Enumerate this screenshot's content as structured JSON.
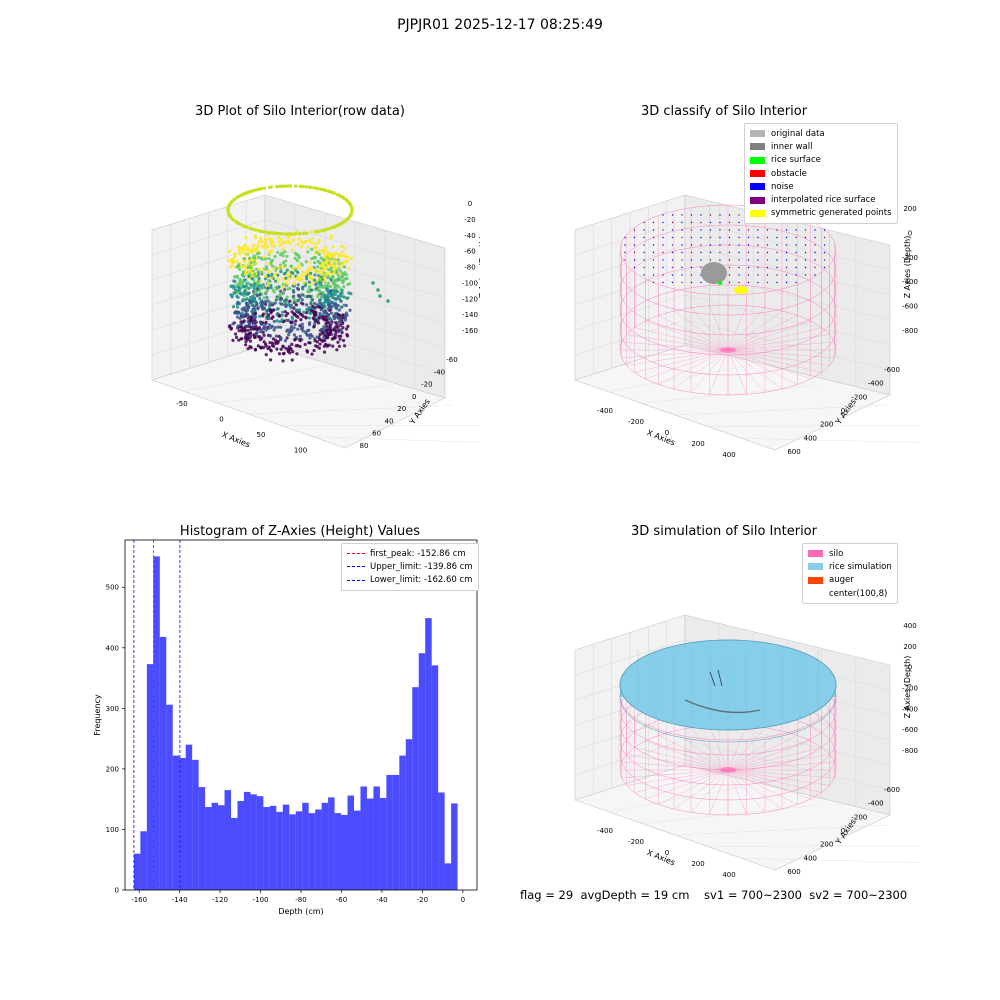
{
  "figure": {
    "suptitle": "PJPJR01 2025-12-17 08:25:49",
    "status_line": "flag = 29  avgDepth = 19 cm    sv1 = 700~2300  sv2 = 700~2300"
  },
  "panels": {
    "raw": {
      "title": "3D Plot of Silo Interior(row data)",
      "xlabel": "X Axies",
      "ylabel": "Y Axies",
      "zlabel": "Z Axies (Depth)",
      "xticks": [
        "-50",
        "0",
        "50",
        "100",
        "150"
      ],
      "yticks": [
        "-60",
        "-40",
        "-20",
        "0",
        "20",
        "40",
        "60",
        "80"
      ],
      "zticks": [
        "0",
        "-20",
        "-40",
        "-60",
        "-80",
        "-100",
        "-120",
        "-140",
        "-160"
      ]
    },
    "classify": {
      "title": "3D classify of Silo Interior",
      "xlabel": "X Axies",
      "ylabel": "Y Axies",
      "zlabel": "Z Axies (Depth)",
      "xticks": [
        "-400",
        "-200",
        "0",
        "200",
        "400",
        "600"
      ],
      "yticks": [
        "-600",
        "-400",
        "-200",
        "0",
        "200",
        "400",
        "600"
      ],
      "zticks": [
        "200",
        "0",
        "-200",
        "-400",
        "-600",
        "-800"
      ],
      "legend": [
        {
          "label": "original data",
          "color": "#b4b4b4"
        },
        {
          "label": "inner wall",
          "color": "#808080"
        },
        {
          "label": "rice surface",
          "color": "#00ff00"
        },
        {
          "label": "obstacle",
          "color": "#ff0000"
        },
        {
          "label": "noise",
          "color": "#0000ff"
        },
        {
          "label": "interpolated rice surface",
          "color": "#800080"
        },
        {
          "label": "symmetric generated points",
          "color": "#ffff00"
        }
      ]
    },
    "simulation": {
      "title": "3D simulation of Silo Interior",
      "xlabel": "X Axies",
      "ylabel": "Y Axies",
      "zlabel": "Z Axies (Depth)",
      "xticks": [
        "-400",
        "-200",
        "0",
        "200",
        "400",
        "600"
      ],
      "yticks": [
        "-600",
        "-400",
        "-200",
        "0",
        "200",
        "400",
        "600"
      ],
      "zticks": [
        "400",
        "200",
        "0",
        "-200",
        "-400",
        "-600",
        "-800"
      ],
      "legend": [
        {
          "label": "silo",
          "color": "#ff69b4"
        },
        {
          "label": "rice simulation",
          "color": "#87ceeb"
        },
        {
          "label": "auger",
          "color": "#ff4500"
        },
        {
          "label": "center(100,8)",
          "color": "#ffffff"
        }
      ]
    }
  },
  "chart_data": {
    "type": "bar",
    "title": "Histogram of Z-Axies (Height) Values",
    "xlabel": "Depth (cm)",
    "ylabel": "Frequency",
    "xlim": [
      -167,
      7
    ],
    "ylim": [
      0,
      578
    ],
    "bin_width": 3.2,
    "bin_start": -162.6,
    "values": [
      60,
      97,
      373,
      551,
      418,
      306,
      222,
      218,
      240,
      215,
      170,
      137,
      144,
      140,
      165,
      119,
      147,
      162,
      158,
      155,
      137,
      139,
      129,
      141,
      125,
      130,
      144,
      127,
      133,
      144,
      153,
      127,
      124,
      156,
      131,
      171,
      151,
      171,
      152,
      190,
      190,
      222,
      249,
      335,
      391,
      449,
      371,
      161,
      44,
      143
    ],
    "xticks": [
      -160,
      -140,
      -120,
      -100,
      -80,
      -60,
      -40,
      -20,
      0
    ],
    "yticks": [
      0,
      100,
      200,
      300,
      400,
      500
    ],
    "bar_color": "#0000ff",
    "bar_opacity": 0.7,
    "vlines": [
      {
        "label": "first_peak: -152.86 cm",
        "x": -152.86,
        "color": "#ff0000"
      },
      {
        "label": "Upper_limit: -139.86 cm",
        "x": -139.86,
        "color": "#0000ff"
      },
      {
        "label": "Lower_limit: -162.60 cm",
        "x": -162.6,
        "color": "#0000ff"
      }
    ],
    "legend_position": "top-right"
  }
}
